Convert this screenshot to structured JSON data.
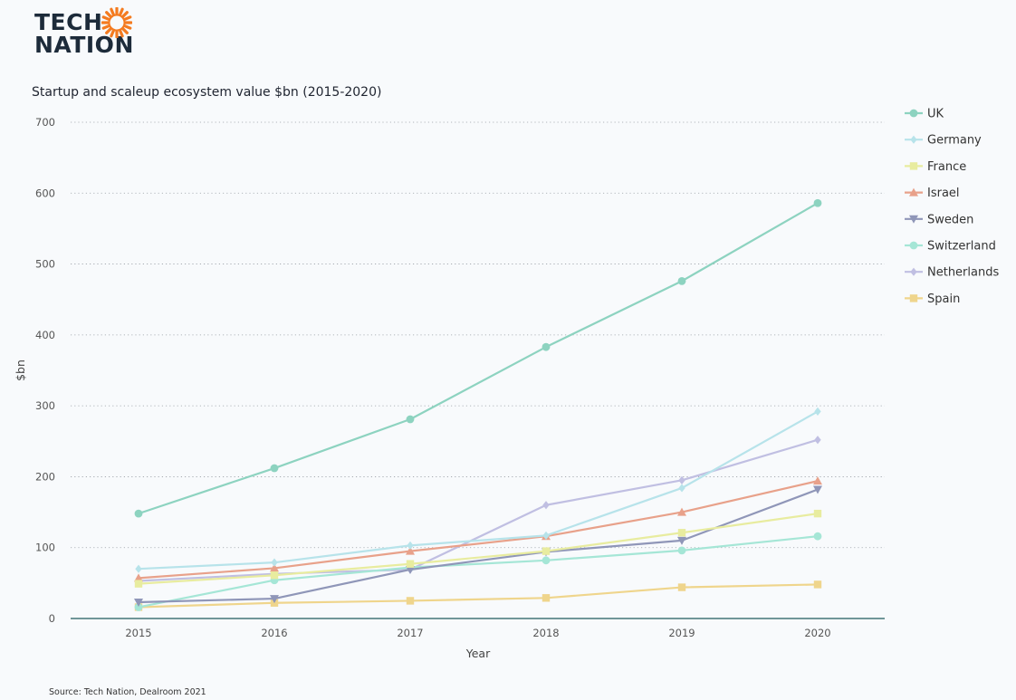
{
  "logo": {
    "line1": "TECH",
    "line2": "NATION",
    "accent_color": "#f47b20",
    "icon": "sun-icon"
  },
  "footer": {
    "source": "Source: Tech Nation, Dealroom 2021"
  },
  "chart_data": {
    "type": "line",
    "title": "Startup and scaleup ecosystem value $bn (2015-2020)",
    "xlabel": "Year",
    "ylabel": "$bn",
    "ylim": [
      0,
      700
    ],
    "yticks": [
      0,
      100,
      200,
      300,
      400,
      500,
      600,
      700
    ],
    "grid": "horizontal-dotted",
    "legend_position": "right",
    "categories": [
      "2015",
      "2016",
      "2017",
      "2018",
      "2019",
      "2020"
    ],
    "series": [
      {
        "name": "UK",
        "color": "#8dd3c0",
        "marker": "circle",
        "values": [
          148,
          212,
          281,
          383,
          476,
          586
        ]
      },
      {
        "name": "Germany",
        "color": "#b7e3ea",
        "marker": "diamond",
        "values": [
          70,
          79,
          103,
          117,
          184,
          292
        ]
      },
      {
        "name": "France",
        "color": "#e8ec9f",
        "marker": "square",
        "values": [
          49,
          61,
          77,
          95,
          121,
          148
        ]
      },
      {
        "name": "Israel",
        "color": "#e8a18a",
        "marker": "triangle-up",
        "values": [
          57,
          71,
          95,
          116,
          150,
          194
        ]
      },
      {
        "name": "Sweden",
        "color": "#8f96b8",
        "marker": "triangle-down",
        "values": [
          23,
          28,
          69,
          94,
          110,
          182
        ]
      },
      {
        "name": "Switzerland",
        "color": "#a5e6d6",
        "marker": "circle",
        "values": [
          16,
          54,
          72,
          82,
          96,
          116
        ]
      },
      {
        "name": "Netherlands",
        "color": "#c0bfe2",
        "marker": "diamond",
        "values": [
          53,
          63,
          69,
          160,
          195,
          252
        ]
      },
      {
        "name": "Spain",
        "color": "#efd58c",
        "marker": "square",
        "values": [
          16,
          22,
          25,
          29,
          44,
          48
        ]
      }
    ]
  }
}
